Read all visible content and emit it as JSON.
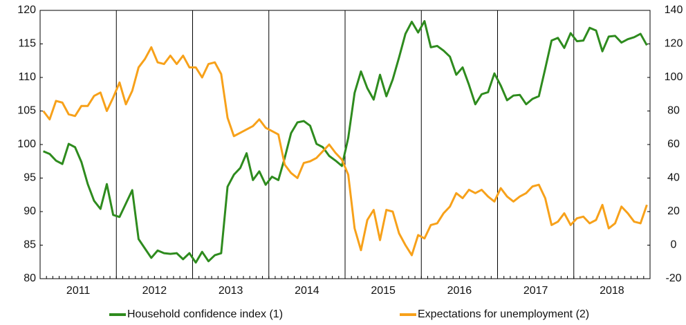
{
  "chart_data": {
    "type": "line",
    "categories": [
      null,
      null,
      null,
      null,
      null,
      null,
      "2011",
      null,
      null,
      null,
      null,
      null,
      null,
      null,
      null,
      null,
      null,
      null,
      "2012",
      null,
      null,
      null,
      null,
      null,
      null,
      null,
      null,
      null,
      null,
      null,
      "2013",
      null,
      null,
      null,
      null,
      null,
      null,
      null,
      null,
      null,
      null,
      null,
      "2014",
      null,
      null,
      null,
      null,
      null,
      null,
      null,
      null,
      null,
      null,
      null,
      "2015",
      null,
      null,
      null,
      null,
      null,
      null,
      null,
      null,
      null,
      null,
      null,
      "2016",
      null,
      null,
      null,
      null,
      null,
      null,
      null,
      null,
      null,
      null,
      null,
      "2017",
      null,
      null,
      null,
      null,
      null,
      null,
      null,
      null,
      null,
      null,
      null,
      "2018",
      null,
      null,
      null,
      null,
      null
    ],
    "series": [
      {
        "name": "Household confidence index (1)",
        "color": "#2e8b1e",
        "axis": "y",
        "values": [
          99,
          98.6,
          97.6,
          97.1,
          100.1,
          99.6,
          97.4,
          94.1,
          91.6,
          90.4,
          94.1,
          89.5,
          89.2,
          91.2,
          93.2,
          85.9,
          84.5,
          83.1,
          84.2,
          83.8,
          83.7,
          83.8,
          82.9,
          83.8,
          82.4,
          84,
          82.6,
          83.5,
          83.8,
          93.7,
          95.5,
          96.5,
          98.7,
          94.7,
          96,
          94,
          95.2,
          94.7,
          98,
          101.7,
          103.3,
          103.5,
          102.8,
          100.1,
          99.6,
          98.3,
          97.6,
          96.8,
          101,
          107.7,
          110.9,
          108.4,
          106.7,
          110.4,
          107.2,
          109.7,
          113,
          116.5,
          118.3,
          116.7,
          118.4,
          114.5,
          114.7,
          114,
          113.1,
          110.4,
          111.5,
          108.9,
          106,
          107.5,
          107.8,
          110.6,
          108.8,
          106.6,
          107.3,
          107.4,
          106,
          106.8,
          107.2,
          111.3,
          115.5,
          115.9,
          114.4,
          116.6,
          115.4,
          115.5,
          117.4,
          117,
          113.9,
          116.1,
          116.2,
          115.2,
          115.7,
          116,
          116.5,
          114.8
        ]
      },
      {
        "name": "Expectations for unemployment (2)",
        "color": "#f7a11a",
        "axis": "y2",
        "values": [
          80,
          75,
          86,
          85,
          78,
          77,
          83,
          83,
          89,
          91,
          80,
          88,
          97,
          84,
          92,
          106,
          111,
          118,
          109,
          108,
          113,
          108,
          113,
          106,
          106,
          100,
          108,
          109,
          102,
          76,
          65,
          67,
          69,
          71,
          75,
          70,
          68,
          66,
          48,
          43,
          40,
          49,
          50,
          52,
          56,
          60,
          55,
          51,
          42,
          10,
          -3,
          15,
          21,
          3,
          21,
          20,
          7,
          0,
          -6,
          6,
          4,
          12,
          13,
          19,
          23,
          31,
          28,
          33,
          31,
          33,
          29,
          26,
          34,
          29,
          26,
          29,
          31,
          35,
          36,
          28,
          12,
          14,
          19,
          12,
          16,
          17,
          13,
          15,
          24,
          10,
          13,
          23,
          19,
          14,
          13,
          24
        ]
      }
    ],
    "ylim": [
      80,
      120
    ],
    "yticks": [
      80,
      85,
      90,
      95,
      100,
      105,
      110,
      115,
      120
    ],
    "y2lim": [
      -20,
      140
    ],
    "y2ticks": [
      -20,
      0,
      20,
      40,
      60,
      80,
      100,
      120,
      140
    ]
  }
}
